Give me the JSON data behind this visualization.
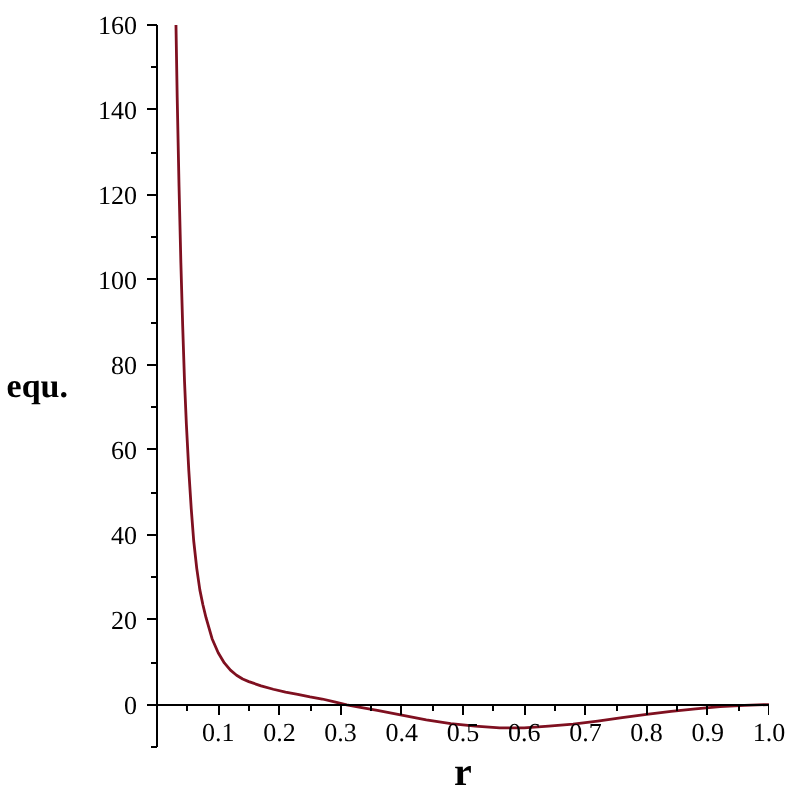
{
  "chart_data": {
    "type": "line",
    "xlabel": "r",
    "ylabel": "equ.",
    "xlim": [
      0,
      1
    ],
    "ylim": [
      -10,
      160
    ],
    "xticks": [
      {
        "value": 0.05,
        "label": null
      },
      0.1,
      {
        "value": 0.15,
        "label": null
      },
      0.2,
      {
        "value": 0.25,
        "label": null
      },
      0.3,
      {
        "value": 0.35,
        "label": null
      },
      0.4,
      {
        "value": 0.45,
        "label": null
      },
      0.5,
      {
        "value": 0.55,
        "label": null
      },
      0.6,
      {
        "value": 0.65,
        "label": null
      },
      0.7,
      {
        "value": 0.75,
        "label": null
      },
      0.8,
      {
        "value": 0.85,
        "label": null
      },
      0.9,
      {
        "value": 0.95,
        "label": null
      },
      {
        "value": 1,
        "label": "1.0"
      }
    ],
    "yticks": [
      {
        "value": -10,
        "label": null
      },
      0,
      {
        "value": 10,
        "label": null
      },
      20,
      {
        "value": 30,
        "label": null
      },
      40,
      {
        "value": 50,
        "label": null
      },
      60,
      {
        "value": 70,
        "label": null
      },
      80,
      {
        "value": 90,
        "label": null
      },
      100,
      {
        "value": 110,
        "label": null
      },
      120,
      {
        "value": 130,
        "label": null
      },
      140,
      {
        "value": 150,
        "label": null
      },
      160
    ],
    "grid": false,
    "marker": "none",
    "line_style": "solid",
    "series": [
      {
        "color": "#7f1020",
        "x": [
          0.031,
          0.033,
          0.036,
          0.039,
          0.042,
          0.045,
          0.048,
          0.052,
          0.056,
          0.06,
          0.065,
          0.07,
          0.075,
          0.08,
          0.09,
          0.1,
          0.11,
          0.12,
          0.13,
          0.14,
          0.15,
          0.17,
          0.19,
          0.21,
          0.23,
          0.25,
          0.27,
          0.29,
          0.31,
          0.33,
          0.36,
          0.4,
          0.44,
          0.48,
          0.52,
          0.56,
          0.6,
          0.64,
          0.68,
          0.72,
          0.76,
          0.8,
          0.84,
          0.88,
          0.92,
          0.96,
          1.0
        ],
        "values": [
          160,
          143,
          122,
          104,
          89,
          76,
          66,
          55,
          46,
          38.5,
          32,
          27,
          23.5,
          20.5,
          15.5,
          12.2,
          9.8,
          8.1,
          6.9,
          6.0,
          5.4,
          4.4,
          3.6,
          2.9,
          2.4,
          1.8,
          1.3,
          0.6,
          -0.1,
          -0.6,
          -1.4,
          -2.5,
          -3.6,
          -4.5,
          -5.1,
          -5.5,
          -5.5,
          -5.1,
          -4.6,
          -3.9,
          -3.1,
          -2.3,
          -1.6,
          -1.0,
          -0.5,
          -0.2,
          0
        ]
      }
    ]
  }
}
